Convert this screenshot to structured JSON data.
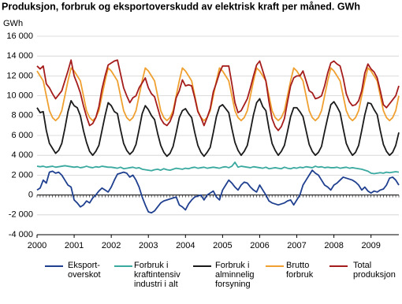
{
  "chart_data": {
    "type": "line",
    "title": "Produksjon, forbruk og eksportoverskudd av elektrisk kraft per måned. GWh",
    "y_label": "GWh",
    "categories": [
      "2000",
      null,
      null,
      null,
      null,
      null,
      null,
      null,
      null,
      null,
      null,
      null,
      "2001",
      null,
      null,
      null,
      null,
      null,
      null,
      null,
      null,
      null,
      null,
      null,
      "2002",
      null,
      null,
      null,
      null,
      null,
      null,
      null,
      null,
      null,
      null,
      null,
      "2003",
      null,
      null,
      null,
      null,
      null,
      null,
      null,
      null,
      null,
      null,
      null,
      "2004",
      null,
      null,
      null,
      null,
      null,
      null,
      null,
      null,
      null,
      null,
      null,
      "2005",
      null,
      null,
      null,
      null,
      null,
      null,
      null,
      null,
      null,
      null,
      null,
      "2006",
      null,
      null,
      null,
      null,
      null,
      null,
      null,
      null,
      null,
      null,
      null,
      "2007",
      null,
      null,
      null,
      null,
      null,
      null,
      null,
      null,
      null,
      null,
      null,
      "2008",
      null,
      null,
      null,
      null,
      null,
      null,
      null,
      null,
      null,
      null,
      null,
      "2009",
      null,
      null,
      null,
      null,
      null,
      null,
      null,
      null,
      null
    ],
    "ylim": [
      -4000,
      16000
    ],
    "yticks": [
      {
        "value": -4000,
        "label": "-4 000"
      },
      {
        "value": -2000,
        "label": "-2 000"
      },
      0,
      {
        "value": 2000,
        "label": "2 000"
      },
      {
        "value": 4000,
        "label": "4 000"
      },
      {
        "value": 6000,
        "label": "6 000"
      },
      {
        "value": 8000,
        "label": "8 000"
      },
      {
        "value": 10000,
        "label": "10 000"
      },
      {
        "value": 12000,
        "label": "12 000"
      },
      {
        "value": 14000,
        "label": "14 000"
      },
      {
        "value": 16000,
        "label": "16 000"
      }
    ],
    "grid": true,
    "legend": "bottom",
    "series": [
      {
        "name": "Eksport-\noverskot",
        "color": "#1f3f8f",
        "values": [
          500,
          700,
          1500,
          1200,
          2300,
          2400,
          2200,
          2300,
          2000,
          1500,
          1000,
          800,
          -500,
          -800,
          -1200,
          -1000,
          -600,
          -800,
          -300,
          0,
          400,
          700,
          500,
          300,
          800,
          1500,
          2100,
          2200,
          2300,
          2200,
          1800,
          2000,
          1500,
          800,
          -200,
          -1000,
          -1700,
          -1800,
          -1600,
          -1200,
          -800,
          -600,
          -500,
          -400,
          -300,
          -200,
          -1000,
          -1200,
          -1500,
          -900,
          -500,
          -200,
          -100,
          0,
          -500,
          0,
          200,
          400,
          -200,
          -500,
          500,
          1000,
          1500,
          1200,
          800,
          500,
          1000,
          1300,
          1200,
          800,
          500,
          300,
          1000,
          500,
          0,
          -600,
          -800,
          -900,
          -1000,
          -900,
          -800,
          -600,
          -500,
          -1000,
          -500,
          0,
          1000,
          1500,
          2000,
          2500,
          2200,
          2000,
          1500,
          1000,
          800,
          500,
          1000,
          1200,
          1500,
          1800,
          1700,
          1600,
          1500,
          1300,
          1000,
          500,
          800,
          400,
          200,
          400,
          300,
          500,
          600,
          1000,
          1700,
          1800,
          1500,
          1000
        ]
      },
      {
        "name": "Forbruk i\nkraftintensiv\nindustri i alt",
        "color": "#3aa99f",
        "values": [
          2900,
          2850,
          2900,
          2800,
          2850,
          2900,
          2800,
          2850,
          2900,
          2950,
          2900,
          2850,
          2800,
          2850,
          2750,
          2800,
          2900,
          2800,
          2750,
          2850,
          2800,
          2900,
          2850,
          2800,
          2800,
          2750,
          2700,
          2800,
          2650,
          2700,
          2750,
          2800,
          2700,
          2750,
          2600,
          2550,
          2500,
          2450,
          2550,
          2600,
          2500,
          2650,
          2550,
          2500,
          2600,
          2700,
          2650,
          2600,
          2700,
          2650,
          2750,
          2800,
          2700,
          2750,
          2800,
          2700,
          2750,
          2800,
          2750,
          2700,
          2800,
          2850,
          2750,
          2900,
          3300,
          2800,
          2900,
          2850,
          2800,
          2750,
          2850,
          2800,
          2750,
          2700,
          2800,
          2650,
          2700,
          2750,
          2700,
          2650,
          2800,
          2700,
          2650,
          2750,
          2700,
          2800,
          2750,
          2850,
          2800,
          2750,
          2900,
          2800,
          2850,
          2750,
          2800,
          2750,
          2750,
          2800,
          2700,
          2750,
          2800,
          2700,
          2750,
          2700,
          2650,
          2600,
          2500,
          2400,
          2200,
          2150,
          2200,
          2250,
          2200,
          2300,
          2250,
          2300,
          2350,
          2300
        ]
      },
      {
        "name": "Forbruk i\nalminnelig\nforsyning",
        "color": "#1a1a1a",
        "values": [
          8800,
          8300,
          8400,
          6500,
          5200,
          4700,
          4200,
          4500,
          5200,
          6700,
          8400,
          9500,
          9000,
          8800,
          8000,
          6500,
          5300,
          4400,
          4000,
          4400,
          5000,
          6500,
          8000,
          9300,
          9000,
          8400,
          8200,
          6600,
          5200,
          4500,
          4100,
          4400,
          5100,
          6600,
          8200,
          9000,
          8600,
          8000,
          7600,
          6200,
          5000,
          4300,
          3900,
          4200,
          4900,
          6300,
          7800,
          8500,
          8700,
          8200,
          7800,
          6300,
          5000,
          4300,
          3900,
          4300,
          4800,
          6300,
          7900,
          8900,
          9100,
          8700,
          8300,
          6700,
          5300,
          4500,
          4000,
          4400,
          5000,
          6500,
          8100,
          9300,
          9700,
          8900,
          8500,
          6700,
          5200,
          4500,
          4000,
          4400,
          5000,
          6400,
          7900,
          8800,
          8800,
          8400,
          7900,
          6500,
          5100,
          4400,
          4000,
          4300,
          4900,
          6400,
          7800,
          9100,
          9400,
          8900,
          8300,
          6700,
          5200,
          4500,
          4000,
          4300,
          5000,
          6500,
          8100,
          9300,
          9200,
          8600,
          8100,
          6500,
          5100,
          4400,
          4000,
          4300,
          5000,
          6300
        ]
      },
      {
        "name": "Brutto\nforbruk",
        "color": "#f0a030",
        "values": [
          12500,
          12000,
          11500,
          10000,
          8500,
          7800,
          7500,
          7800,
          8500,
          10000,
          11500,
          12800,
          12500,
          12000,
          11500,
          10000,
          8500,
          7800,
          7500,
          7800,
          8500,
          10000,
          11500,
          12800,
          12500,
          12000,
          11500,
          10000,
          8500,
          7800,
          7500,
          7800,
          8500,
          10000,
          11500,
          12800,
          12500,
          12000,
          11500,
          10000,
          8500,
          7800,
          7500,
          7800,
          8500,
          10000,
          11500,
          12800,
          12500,
          12000,
          11500,
          10000,
          8500,
          7800,
          7500,
          7800,
          8500,
          10000,
          11500,
          12800,
          12500,
          12000,
          11500,
          10000,
          8500,
          7800,
          7500,
          7800,
          8500,
          10000,
          11500,
          12800,
          12500,
          12000,
          11500,
          10000,
          8500,
          7800,
          7500,
          7800,
          8500,
          10000,
          11500,
          12800,
          12500,
          12000,
          11500,
          10000,
          8500,
          7800,
          7500,
          7800,
          8500,
          10000,
          11500,
          12800,
          12500,
          12000,
          11500,
          10000,
          8500,
          7800,
          7500,
          7800,
          8500,
          10000,
          11500,
          12800,
          12500,
          12000,
          11500,
          10000,
          8500,
          7800,
          7500,
          7800,
          8500,
          10000
        ]
      },
      {
        "name": "Total\nproduksjon",
        "color": "#a51c1c",
        "values": [
          13000,
          12700,
          13000,
          11200,
          10800,
          10200,
          9700,
          10100,
          10500,
          11500,
          12500,
          13600,
          12000,
          11200,
          10300,
          9000,
          7900,
          7000,
          7200,
          7800,
          8900,
          10700,
          12000,
          13100,
          13300,
          13500,
          13600,
          12200,
          10800,
          10000,
          9300,
          9800,
          10000,
          10800,
          11300,
          11800,
          10800,
          10200,
          9900,
          8800,
          7700,
          7200,
          7000,
          7400,
          8200,
          9800,
          10500,
          11600,
          11000,
          11100,
          11000,
          9800,
          8400,
          7800,
          7000,
          7800,
          8700,
          10400,
          11300,
          12300,
          13000,
          13000,
          13000,
          11200,
          9300,
          8300,
          8500,
          9100,
          9700,
          10800,
          12000,
          13100,
          13500,
          12500,
          11500,
          9400,
          7700,
          6900,
          6500,
          6900,
          7700,
          9400,
          11000,
          11800,
          12000,
          12000,
          12500,
          11500,
          10500,
          10300,
          9700,
          9800,
          10000,
          11000,
          12300,
          13300,
          13500,
          13200,
          13000,
          11800,
          10200,
          9400,
          9000,
          9100,
          9500,
          10500,
          12300,
          13200,
          12700,
          12400,
          11800,
          10500,
          9100,
          8800,
          9200,
          9600,
          10000,
          11000
        ]
      }
    ]
  }
}
